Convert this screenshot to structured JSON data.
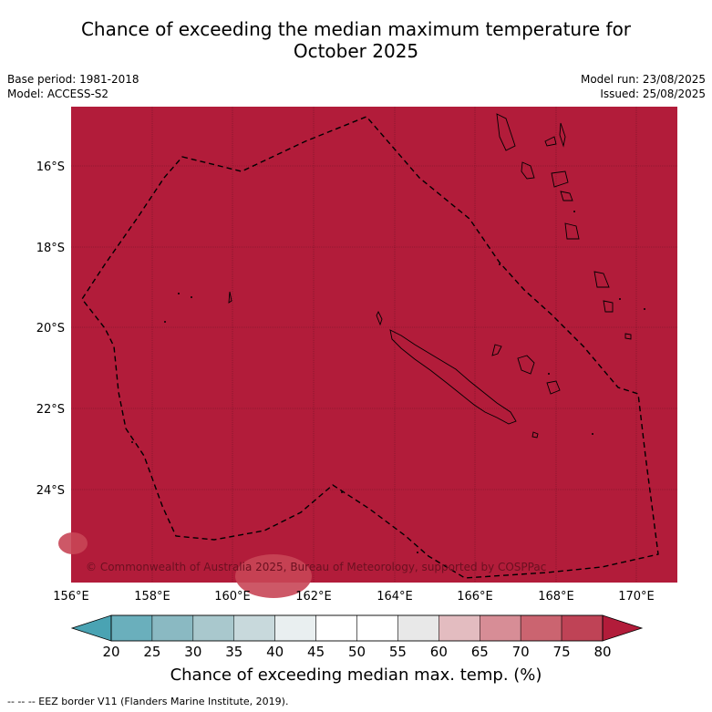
{
  "title_line1": "Chance of exceeding the median maximum temperature for",
  "title_line2": "October 2025",
  "base_period": "Base period: 1981-2018",
  "model": "Model: ACCESS-S2",
  "model_run": "Model run: 23/08/2025",
  "issued": "Issued: 25/08/2025",
  "copyright": "© Commonwealth of Australia 2025, Bureau of Meteorology, supported by COSPPac",
  "lat_labels": [
    "16°S",
    "18°S",
    "20°S",
    "22°S",
    "24°S"
  ],
  "lon_labels": [
    "156°E",
    "158°E",
    "160°E",
    "162°E",
    "164°E",
    "166°E",
    "168°E",
    "170°E"
  ],
  "colorbar": {
    "ticks": [
      "20",
      "25",
      "30",
      "35",
      "40",
      "45",
      "50",
      "55",
      "60",
      "65",
      "70",
      "75",
      "80"
    ],
    "colors": [
      "#6aafbc",
      "#8ab9c2",
      "#a9c8cd",
      "#c8d9dc",
      "#e9eff0",
      "#ffffff",
      "#ffffff",
      "#e8e8e8",
      "#e3bcc0",
      "#d78d96",
      "#cb6470",
      "#bf4356"
    ],
    "low_color": "#4aa3b3",
    "high_color": "#b21c3a",
    "title": "Chance of exceeding median max. temp. (%)"
  },
  "map_fill_color": "#b21c3a",
  "footer": "--  --  -- EEZ border V11 (Flanders Marine Institute, 2019)."
}
